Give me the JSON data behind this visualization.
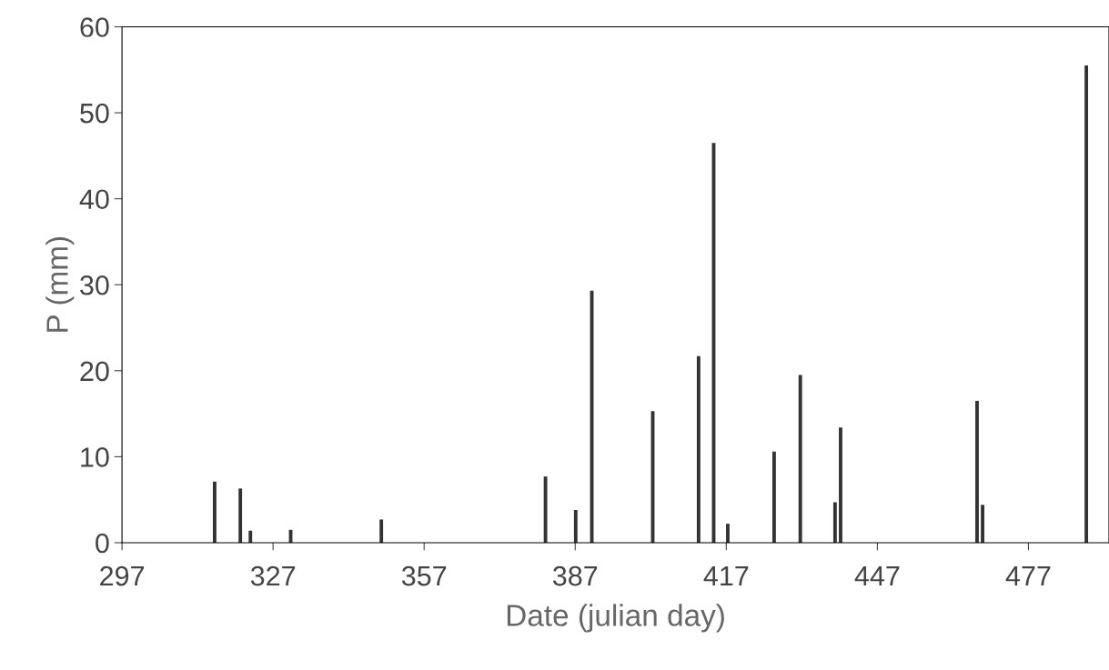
{
  "chart_data": {
    "type": "bar",
    "xlabel": "Date (julian day)",
    "ylabel": "P (mm)",
    "x": [
      315.4,
      320.5,
      322.5,
      330.5,
      348.5,
      381.1,
      387.1,
      390.3,
      402.4,
      411.5,
      414.5,
      417.3,
      426.5,
      431.7,
      438.6,
      439.7,
      466.8,
      467.9,
      488.5
    ],
    "series": [
      {
        "color": "#333333",
        "values": [
          7.1,
          6.3,
          1.4,
          1.5,
          2.7,
          7.7,
          3.8,
          29.3,
          15.3,
          21.7,
          46.5,
          2.2,
          10.6,
          19.5,
          4.7,
          13.4,
          16.5,
          4.4,
          55.5
        ]
      }
    ],
    "xlim": [
      297,
      493
    ],
    "xticks": [
      297,
      327,
      357,
      387,
      417,
      447,
      477
    ],
    "ylim": [
      0,
      60
    ],
    "yticks": [
      0,
      10,
      20,
      30,
      40,
      50,
      60
    ],
    "grid": false,
    "legend": false
  }
}
